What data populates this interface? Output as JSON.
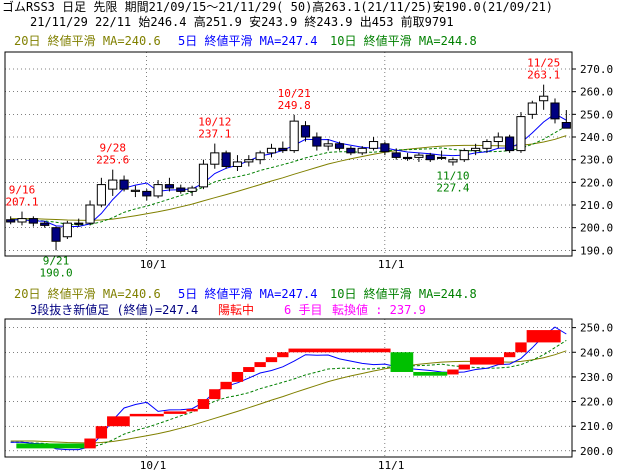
{
  "header": {
    "line1": "ゴムRSS3 日足 先限 期間21/09/15～21/11/29( 50)高263.1(21/11/25)安190.0(21/09/21)",
    "line2": "21/11/29 22/11 始246.4 高251.9 安243.9 終243.9 出453 前取9791"
  },
  "legend": {
    "ma20": "20日 終値平滑 MA=240.6",
    "ma5": "5日 終値平滑 MA=247.4",
    "ma10": "10日 終値平滑 MA=244.8"
  },
  "lower_info": {
    "title": "3段抜き新値足 (終値)=247.4",
    "status": "陽転中",
    "count": "6 手目",
    "reversal": "転換値 : 237.9"
  },
  "annotations": [
    {
      "date": "9/16",
      "value": "207.1"
    },
    {
      "date": "9/21",
      "value": "190.0"
    },
    {
      "date": "9/28",
      "value": "225.6"
    },
    {
      "date": "10/12",
      "value": "237.1"
    },
    {
      "date": "10/21",
      "value": "249.8"
    },
    {
      "date": "11/10",
      "value": "227.4"
    },
    {
      "date": "11/25",
      "value": "263.1"
    }
  ],
  "colors": {
    "up_candle": "#ffffff",
    "down_candle": "#000080",
    "ma5": "#0000ff",
    "ma10": "#008000",
    "ma20": "#808000",
    "high_label": "#ff0000",
    "low_label": "#008000",
    "brick_up": "#ff0000",
    "brick_down": "#00c000"
  },
  "chart_data": [
    {
      "type": "candlestick",
      "title": "ゴムRSS3 日足 先限",
      "x_ticks": [
        "10/1",
        "11/1"
      ],
      "ylim": [
        187.5,
        277.5
      ],
      "y_ticks": [
        "190.0",
        "200.0",
        "210.0",
        "220.0",
        "230.0",
        "240.0",
        "250.0",
        "260.0",
        "270.0"
      ],
      "ohlc": [
        [
          203.5,
          205.0,
          201.5,
          202.5
        ],
        [
          202.5,
          207.1,
          201.0,
          204.0
        ],
        [
          204.0,
          205.0,
          200.5,
          202.0
        ],
        [
          202.0,
          203.0,
          200.0,
          201.0
        ],
        [
          200.0,
          200.5,
          190.0,
          194.0
        ],
        [
          196.0,
          203.0,
          195.0,
          202.0
        ],
        [
          202.0,
          204.0,
          200.5,
          201.5
        ],
        [
          202.0,
          212.0,
          201.0,
          210.0
        ],
        [
          210.0,
          222.0,
          209.0,
          219.0
        ],
        [
          217.0,
          225.6,
          214.0,
          221.0
        ],
        [
          221.0,
          223.0,
          216.0,
          217.0
        ],
        [
          216.0,
          218.5,
          213.5,
          216.5
        ],
        [
          216.0,
          217.0,
          212.0,
          214.0
        ],
        [
          214.0,
          221.0,
          213.0,
          219.0
        ],
        [
          219.0,
          222.0,
          216.0,
          217.5
        ],
        [
          217.5,
          219.0,
          215.0,
          216.0
        ],
        [
          216.0,
          218.5,
          214.0,
          217.5
        ],
        [
          218.0,
          230.0,
          217.0,
          228.0
        ],
        [
          228.0,
          237.1,
          226.0,
          233.0
        ],
        [
          233.0,
          234.0,
          226.0,
          227.0
        ],
        [
          227.0,
          232.0,
          225.0,
          229.0
        ],
        [
          229.0,
          232.0,
          227.0,
          230.0
        ],
        [
          230.0,
          234.0,
          228.0,
          233.0
        ],
        [
          233.0,
          237.0,
          231.0,
          235.0
        ],
        [
          235.0,
          238.0,
          233.0,
          234.0
        ],
        [
          234.0,
          249.8,
          233.0,
          247.0
        ],
        [
          245.0,
          247.0,
          238.0,
          240.0
        ],
        [
          240.0,
          242.0,
          234.0,
          236.0
        ],
        [
          236.0,
          239.0,
          234.0,
          237.0
        ],
        [
          237.0,
          238.0,
          234.0,
          235.0
        ],
        [
          235.0,
          236.0,
          232.0,
          233.0
        ],
        [
          233.0,
          236.0,
          232.0,
          235.0
        ],
        [
          235.0,
          240.0,
          234.0,
          238.0
        ],
        [
          237.0,
          238.0,
          232.0,
          233.5
        ],
        [
          233.0,
          235.0,
          230.0,
          231.0
        ],
        [
          231.0,
          233.0,
          229.5,
          230.5
        ],
        [
          231.0,
          233.0,
          229.0,
          232.0
        ],
        [
          232.0,
          233.0,
          229.0,
          230.0
        ],
        [
          231.0,
          234.0,
          230.0,
          231.0
        ],
        [
          229.0,
          231.0,
          227.4,
          230.0
        ],
        [
          230.0,
          235.0,
          229.0,
          234.0
        ],
        [
          234.0,
          237.0,
          232.0,
          235.0
        ],
        [
          235.0,
          239.0,
          233.0,
          238.0
        ],
        [
          238.0,
          242.0,
          235.0,
          240.0
        ],
        [
          240.0,
          241.0,
          233.0,
          234.0
        ],
        [
          234.0,
          251.0,
          233.0,
          249.0
        ],
        [
          250.0,
          256.0,
          248.0,
          255.0
        ],
        [
          256.0,
          263.1,
          252.0,
          258.0
        ],
        [
          255.0,
          257.0,
          246.0,
          248.0
        ],
        [
          246.4,
          251.9,
          243.9,
          243.9
        ]
      ],
      "ma5": [
        203.5,
        203.5,
        203.0,
        202.8,
        200.8,
        200.5,
        200.5,
        201.7,
        206.3,
        212.4,
        217.4,
        218.8,
        219.7,
        216.0,
        216.6,
        216.7,
        217.1,
        219.6,
        223.9,
        226.2,
        227.6,
        229.5,
        231.6,
        232.6,
        234.1,
        236.4,
        239.0,
        238.8,
        238.9,
        237.3,
        236.4,
        235.5,
        235.0,
        235.2,
        234.2,
        233.4,
        233.0,
        232.6,
        232.0,
        231.8,
        232.0,
        233.0,
        233.5,
        235.0,
        235.2,
        237.5,
        241.8,
        246.6,
        250.2,
        247.4
      ],
      "ma10": [
        203.5,
        203.5,
        203.2,
        203.0,
        202.4,
        201.5,
        201.2,
        201.4,
        202.6,
        204.4,
        206.8,
        208.3,
        209.5,
        211.0,
        212.6,
        214.2,
        215.7,
        217.9,
        220.2,
        221.6,
        222.5,
        223.6,
        225.2,
        226.5,
        227.8,
        229.2,
        230.8,
        232.0,
        233.2,
        233.5,
        233.5,
        233.2,
        233.3,
        233.8,
        234.3,
        234.4,
        234.6,
        234.8,
        235.2,
        234.5,
        234.1,
        233.8,
        233.5,
        233.6,
        234.0,
        235.0,
        236.8,
        239.0,
        241.9,
        244.8
      ],
      "ma20": [
        204.0,
        204.0,
        204.0,
        203.8,
        203.6,
        203.4,
        203.3,
        203.2,
        203.4,
        203.8,
        204.5,
        205.3,
        206.1,
        207.0,
        208.0,
        209.2,
        210.4,
        211.8,
        213.2,
        214.6,
        216.0,
        217.5,
        219.0,
        220.6,
        222.0,
        223.6,
        225.1,
        226.6,
        228.1,
        229.3,
        230.4,
        231.4,
        232.4,
        233.3,
        234.0,
        234.6,
        235.1,
        235.6,
        236.0,
        236.2,
        236.3,
        236.3,
        236.2,
        236.1,
        236.0,
        236.3,
        236.9,
        237.8,
        239.0,
        240.6
      ]
    },
    {
      "type": "three_line_break",
      "title": "3段抜き新値足 (終値)=247.4",
      "x_ticks": [
        "10/1",
        "11/1"
      ],
      "ylim": [
        197.5,
        253.5
      ],
      "y_ticks": [
        "200.0",
        "210.0",
        "220.0",
        "230.0",
        "240.0",
        "250.0"
      ],
      "bricks": [
        {
          "dir": "down",
          "top": 203.0,
          "bottom": 201.0,
          "span": [
            1,
            7
          ]
        },
        {
          "dir": "up",
          "top": 205.0,
          "bottom": 201.0,
          "span": [
            7,
            8
          ]
        },
        {
          "dir": "up",
          "top": 210.0,
          "bottom": 205.0,
          "span": [
            8,
            9
          ]
        },
        {
          "dir": "up",
          "top": 214.0,
          "bottom": 210.0,
          "span": [
            9,
            11
          ]
        },
        {
          "dir": "up",
          "top": 215.0,
          "bottom": 214.0,
          "span": [
            11,
            14
          ]
        },
        {
          "dir": "up",
          "top": 216.0,
          "bottom": 215.0,
          "span": [
            14,
            16
          ]
        },
        {
          "dir": "up",
          "top": 217.0,
          "bottom": 216.0,
          "span": [
            16,
            17
          ]
        },
        {
          "dir": "up",
          "top": 221.0,
          "bottom": 217.0,
          "span": [
            17,
            18
          ]
        },
        {
          "dir": "up",
          "top": 225.0,
          "bottom": 221.0,
          "span": [
            18,
            19
          ]
        },
        {
          "dir": "up",
          "top": 228.0,
          "bottom": 225.0,
          "span": [
            19,
            20
          ]
        },
        {
          "dir": "up",
          "top": 232.0,
          "bottom": 228.0,
          "span": [
            20,
            21
          ]
        },
        {
          "dir": "up",
          "top": 234.0,
          "bottom": 232.0,
          "span": [
            21,
            22
          ]
        },
        {
          "dir": "up",
          "top": 236.0,
          "bottom": 234.0,
          "span": [
            22,
            23
          ]
        },
        {
          "dir": "up",
          "top": 238.0,
          "bottom": 236.0,
          "span": [
            23,
            24
          ]
        },
        {
          "dir": "up",
          "top": 240.0,
          "bottom": 238.0,
          "span": [
            24,
            25
          ]
        },
        {
          "dir": "up",
          "top": 241.5,
          "bottom": 240.0,
          "span": [
            25,
            34
          ]
        },
        {
          "dir": "down",
          "top": 240.0,
          "bottom": 232.0,
          "span": [
            34,
            36
          ]
        },
        {
          "dir": "down",
          "top": 232.0,
          "bottom": 230.5,
          "span": [
            36,
            39
          ]
        },
        {
          "dir": "up",
          "top": 233.0,
          "bottom": 231.0,
          "span": [
            39,
            40
          ]
        },
        {
          "dir": "up",
          "top": 235.0,
          "bottom": 233.0,
          "span": [
            40,
            41
          ]
        },
        {
          "dir": "up",
          "top": 238.0,
          "bottom": 235.0,
          "span": [
            41,
            44
          ]
        },
        {
          "dir": "up",
          "top": 240.0,
          "bottom": 238.0,
          "span": [
            44,
            45
          ]
        },
        {
          "dir": "up",
          "top": 244.0,
          "bottom": 240.0,
          "span": [
            45,
            46
          ]
        },
        {
          "dir": "up",
          "top": 249.0,
          "bottom": 244.0,
          "span": [
            46,
            49
          ]
        }
      ]
    }
  ]
}
